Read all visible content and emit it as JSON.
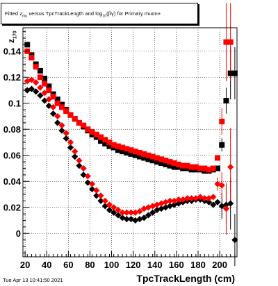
{
  "title": {
    "prefix": "Fitted  z",
    "z_sub": "mu",
    "middle": "  versus TpcTrackLength and log",
    "log_sub": "10",
    "suffix": "(βγ) for Primary muon+"
  },
  "ylabel": {
    "main": "z",
    "sub": "170"
  },
  "xlabel": "TpcTrackLength (cm)",
  "timestamp": "Tue Apr 13 10:41:50 2021",
  "chart_data": {
    "type": "scatter",
    "title": "Fitted  z_mu  versus TpcTrackLength and log_10(βγ) for Primary muon+",
    "xlabel": "TpcTrackLength (cm)",
    "ylabel": "z_170",
    "xlim": [
      18,
      216
    ],
    "ylim": [
      -0.018,
      0.158
    ],
    "x_ticks": [
      20,
      40,
      60,
      80,
      100,
      120,
      140,
      160,
      180,
      200
    ],
    "y_ticks": [
      0,
      0.02,
      0.04,
      0.06,
      0.08,
      0.1,
      0.12,
      0.14
    ],
    "y_tick_labels": [
      "0",
      "0.02",
      "0.04",
      "0.06",
      "0.08",
      "0.1",
      "0.12",
      "0.14"
    ],
    "grid": true,
    "series": [
      {
        "color": "#000000",
        "marker": "square",
        "x": [
          22,
          26,
          30,
          34,
          38,
          42,
          46,
          50,
          54,
          58,
          62,
          66,
          70,
          74,
          78,
          82,
          86,
          90,
          94,
          98,
          102,
          106,
          110,
          114,
          118,
          122,
          126,
          130,
          134,
          138,
          142,
          146,
          150,
          154,
          158,
          162,
          166,
          170,
          174,
          178,
          182,
          186,
          190,
          194,
          198,
          202,
          206,
          210,
          214
        ],
        "y": [
          0.145,
          0.137,
          0.13,
          0.125,
          0.119,
          0.113,
          0.107,
          0.103,
          0.099,
          0.095,
          0.091,
          0.088,
          0.085,
          0.082,
          0.079,
          0.076,
          0.074,
          0.071,
          0.069,
          0.067,
          0.066,
          0.064,
          0.063,
          0.062,
          0.061,
          0.06,
          0.059,
          0.058,
          0.057,
          0.056,
          0.055,
          0.054,
          0.053,
          0.052,
          0.051,
          0.051,
          0.05,
          0.05,
          0.049,
          0.049,
          0.049,
          0.048,
          0.048,
          0.049,
          0.05,
          0.068,
          0.102,
          0.123,
          0.123
        ],
        "err": [
          0,
          0,
          0,
          0,
          0,
          0,
          0,
          0,
          0,
          0,
          0,
          0,
          0,
          0,
          0,
          0,
          0,
          0,
          0,
          0,
          0,
          0,
          0,
          0,
          0,
          0,
          0,
          0,
          0,
          0,
          0,
          0,
          0,
          0,
          0,
          0,
          0,
          0,
          0,
          0,
          0,
          0,
          0,
          0,
          0,
          0.005,
          0.01,
          0.02,
          0.02
        ]
      },
      {
        "color": "#ff0000",
        "marker": "square",
        "x": [
          22,
          26,
          30,
          34,
          38,
          42,
          46,
          50,
          54,
          58,
          62,
          66,
          70,
          74,
          78,
          82,
          86,
          90,
          94,
          98,
          102,
          106,
          110,
          114,
          118,
          122,
          126,
          130,
          134,
          138,
          142,
          146,
          150,
          154,
          158,
          162,
          166,
          170,
          174,
          178,
          182,
          186,
          190,
          194,
          198,
          202,
          206,
          210
        ],
        "y": [
          0.14,
          0.135,
          0.128,
          0.12,
          0.115,
          0.11,
          0.105,
          0.1,
          0.097,
          0.094,
          0.091,
          0.088,
          0.085,
          0.083,
          0.08,
          0.078,
          0.076,
          0.074,
          0.072,
          0.07,
          0.068,
          0.067,
          0.066,
          0.065,
          0.064,
          0.063,
          0.062,
          0.061,
          0.06,
          0.059,
          0.058,
          0.057,
          0.056,
          0.055,
          0.054,
          0.053,
          0.052,
          0.052,
          0.051,
          0.051,
          0.05,
          0.05,
          0.049,
          0.05,
          0.058,
          0.086,
          0.147,
          0.147
        ],
        "err": [
          0,
          0,
          0,
          0,
          0,
          0,
          0,
          0,
          0,
          0,
          0,
          0,
          0,
          0,
          0,
          0,
          0,
          0,
          0,
          0,
          0,
          0,
          0,
          0,
          0,
          0,
          0,
          0,
          0,
          0,
          0,
          0,
          0,
          0,
          0,
          0,
          0,
          0,
          0,
          0,
          0,
          0,
          0,
          0,
          0,
          0.01,
          0.03,
          0.03
        ]
      },
      {
        "color": "#000000",
        "marker": "diamond",
        "x": [
          22,
          26,
          30,
          34,
          38,
          42,
          46,
          50,
          54,
          58,
          62,
          66,
          70,
          74,
          78,
          82,
          86,
          90,
          94,
          98,
          102,
          106,
          110,
          114,
          118,
          122,
          126,
          130,
          134,
          138,
          142,
          146,
          150,
          154,
          158,
          162,
          166,
          170,
          174,
          178,
          182,
          186,
          190,
          194,
          198,
          202,
          206,
          210,
          214
        ],
        "y": [
          0.11,
          0.111,
          0.109,
          0.106,
          0.102,
          0.098,
          0.092,
          0.085,
          0.079,
          0.073,
          0.066,
          0.059,
          0.052,
          0.045,
          0.039,
          0.034,
          0.029,
          0.025,
          0.021,
          0.018,
          0.016,
          0.014,
          0.012,
          0.011,
          0.011,
          0.01,
          0.011,
          0.012,
          0.014,
          0.016,
          0.018,
          0.019,
          0.02,
          0.021,
          0.022,
          0.023,
          0.024,
          0.025,
          0.025,
          0.026,
          0.026,
          0.025,
          0.024,
          0.022,
          0.024,
          0.021,
          0.022,
          0.023,
          -0.005
        ],
        "err": [
          0,
          0,
          0,
          0,
          0,
          0,
          0,
          0,
          0,
          0,
          0,
          0,
          0,
          0,
          0,
          0,
          0,
          0,
          0,
          0,
          0,
          0,
          0,
          0,
          0,
          0,
          0,
          0,
          0,
          0,
          0,
          0,
          0,
          0,
          0,
          0,
          0,
          0,
          0,
          0,
          0,
          0,
          0,
          0,
          0,
          0.01,
          0.015,
          0.02,
          0.02
        ]
      },
      {
        "color": "#ff0000",
        "marker": "diamond",
        "x": [
          22,
          26,
          30,
          34,
          38,
          42,
          46,
          50,
          54,
          58,
          62,
          66,
          70,
          74,
          78,
          82,
          86,
          90,
          94,
          98,
          102,
          106,
          110,
          114,
          118,
          122,
          126,
          130,
          134,
          138,
          142,
          146,
          150,
          154,
          158,
          162,
          166,
          170,
          174,
          178,
          182,
          186,
          190,
          194,
          198,
          202,
          206,
          210
        ],
        "y": [
          0.117,
          0.118,
          0.116,
          0.112,
          0.108,
          0.103,
          0.097,
          0.09,
          0.083,
          0.077,
          0.07,
          0.063,
          0.056,
          0.05,
          0.044,
          0.038,
          0.033,
          0.029,
          0.025,
          0.022,
          0.02,
          0.018,
          0.016,
          0.016,
          0.016,
          0.016,
          0.017,
          0.019,
          0.02,
          0.021,
          0.022,
          0.023,
          0.024,
          0.025,
          0.025,
          0.026,
          0.026,
          0.027,
          0.027,
          0.027,
          0.028,
          0.027,
          0.027,
          0.028,
          0.038,
          0.037,
          0.019,
          0.051
        ],
        "err": [
          0,
          0,
          0,
          0,
          0,
          0,
          0,
          0,
          0,
          0,
          0,
          0,
          0,
          0,
          0,
          0,
          0,
          0,
          0,
          0,
          0,
          0,
          0,
          0,
          0,
          0,
          0,
          0,
          0,
          0,
          0,
          0,
          0,
          0,
          0,
          0,
          0,
          0,
          0,
          0,
          0,
          0,
          0,
          0,
          0.005,
          0.01,
          0.02,
          0.03
        ]
      }
    ]
  }
}
